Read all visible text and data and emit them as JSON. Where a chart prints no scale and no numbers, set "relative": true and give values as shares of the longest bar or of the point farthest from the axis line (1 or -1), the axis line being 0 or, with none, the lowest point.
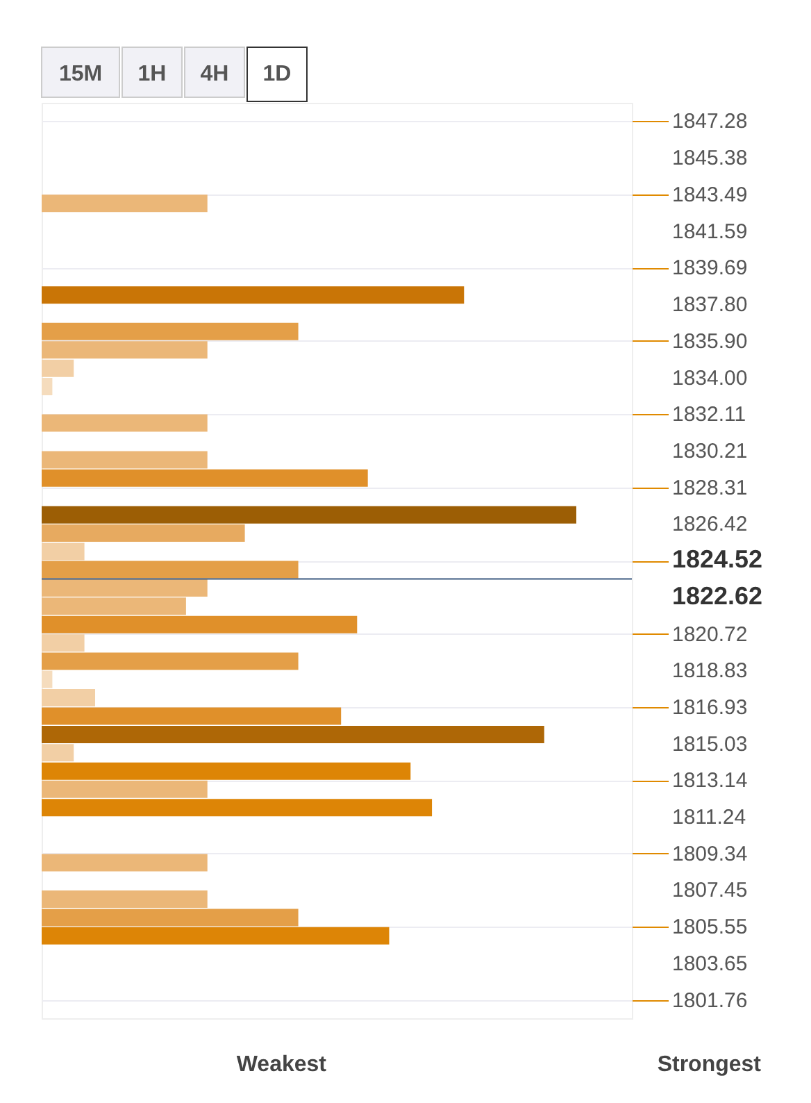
{
  "chart_data": {
    "type": "bar",
    "orientation": "horizontal",
    "relative": true,
    "x": [
      1843.02,
      1838.27,
      1836.38,
      1835.43,
      1834.48,
      1833.53,
      1831.64,
      1829.74,
      1828.79,
      1826.89,
      1825.94,
      1824.99,
      1824.05,
      1823.1,
      1822.15,
      1821.2,
      1820.25,
      1819.3,
      1818.36,
      1817.41,
      1816.46,
      1815.51,
      1814.56,
      1813.61,
      1812.67,
      1811.72,
      1808.87,
      1806.98,
      1806.03,
      1805.08
    ],
    "values": [
      0.31,
      0.79,
      0.48,
      0.31,
      0.06,
      0.02,
      0.31,
      0.31,
      0.61,
      1.0,
      0.38,
      0.08,
      0.48,
      0.31,
      0.27,
      0.59,
      0.08,
      0.48,
      0.02,
      0.1,
      0.56,
      0.94,
      0.06,
      0.69,
      0.31,
      0.73,
      0.31,
      0.31,
      0.48,
      0.65
    ],
    "colors": [
      "#ebb778",
      "#c97506",
      "#e49f48",
      "#ebb778",
      "#f2cfa5",
      "#f5dcbd",
      "#ebb778",
      "#ebb778",
      "#e0902a",
      "#9c5e05",
      "#e7aa60",
      "#f2cfa5",
      "#e49f48",
      "#ebb778",
      "#ebb778",
      "#e0902a",
      "#f2cfa5",
      "#e49f48",
      "#f5dcbd",
      "#f2cfa5",
      "#e0902a",
      "#ae6706",
      "#f2cfa5",
      "#dd8506",
      "#ebb778",
      "#dd8506",
      "#ebb778",
      "#ebb778",
      "#e49f48",
      "#dd8506"
    ],
    "ylim": [
      1800.81,
      1848.23
    ],
    "yticks": [
      1847.28,
      1845.38,
      1843.49,
      1841.59,
      1839.69,
      {
        "value": 1837.8,
        "label": "1837.80"
      },
      {
        "value": 1835.9,
        "label": "1835.90"
      },
      {
        "value": 1834,
        "label": "1834.00"
      },
      1832.11,
      1830.21,
      1828.31,
      1826.42,
      1824.52,
      1822.62,
      1820.72,
      1818.83,
      1816.93,
      1815.03,
      1813.14,
      1811.24,
      1809.34,
      1807.45,
      1805.55,
      1803.65,
      1801.76
    ],
    "ref_lines": [
      {
        "axis": "y",
        "value": 1823.57,
        "color": "#3d5a80"
      }
    ],
    "grid": "y",
    "annotations": [
      "15M",
      "1H",
      "4H",
      "1D",
      "Weakest",
      "Strongest"
    ]
  }
}
